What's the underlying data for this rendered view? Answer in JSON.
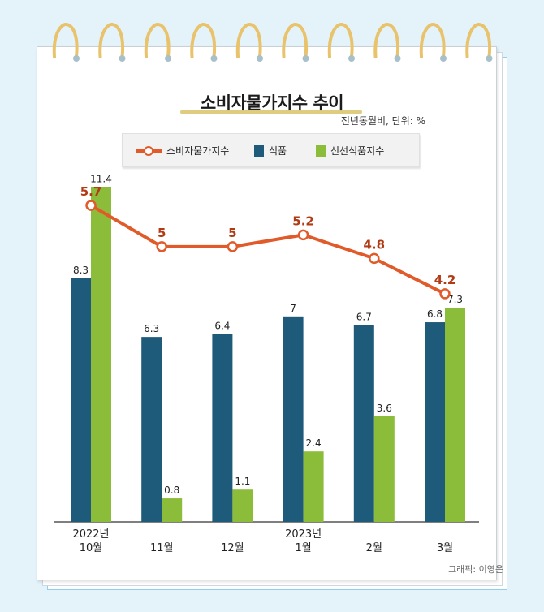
{
  "title": "소비자물가지수 추이",
  "unit_note": "전년동월비, 단위: %",
  "credit": "그래픽: 이영은",
  "colors": {
    "line": "#e05a2a",
    "food": "#1e5a7a",
    "fresh": "#8cbd3a",
    "line_label": "#b23a14"
  },
  "legend": [
    {
      "label": "소비자물가지수"
    },
    {
      "label": "식품"
    },
    {
      "label": "신선식품지수"
    }
  ],
  "chart_data": {
    "type": "bar",
    "title": "소비자물가지수 추이",
    "subtitle": "전년동월비, 단위: %",
    "categories": [
      [
        "2022년",
        "10월"
      ],
      [
        "11월"
      ],
      [
        "12월"
      ],
      [
        "2023년",
        "1월"
      ],
      [
        "2월"
      ],
      [
        "3월"
      ]
    ],
    "series": [
      {
        "name": "식품",
        "type": "bar",
        "values": [
          8.3,
          6.3,
          6.4,
          7,
          6.7,
          6.8
        ],
        "labels": [
          "8.3",
          "6.3",
          "6.4",
          "7",
          "6.7",
          "6.8"
        ]
      },
      {
        "name": "신선식품지수",
        "type": "bar",
        "values": [
          11.4,
          0.8,
          1.1,
          2.4,
          3.6,
          7.3
        ],
        "labels": [
          "11.4",
          "0.8",
          "1.1",
          "2.4",
          "3.6",
          "7.3"
        ]
      },
      {
        "name": "소비자물가지수",
        "type": "line",
        "values": [
          5.7,
          5,
          5,
          5.2,
          4.8,
          4.2
        ],
        "labels": [
          "5.7",
          "5",
          "5",
          "5.2",
          "4.8",
          "4.2"
        ]
      }
    ],
    "bar_ylim": [
      0,
      15.4
    ],
    "line_ylim": [
      3.4,
      6.5
    ]
  }
}
